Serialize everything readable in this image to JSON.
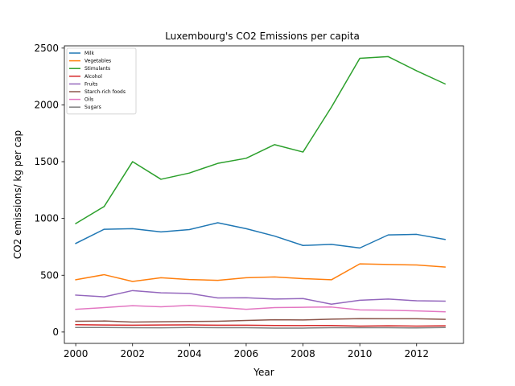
{
  "chart_data": {
    "type": "line",
    "title": "Luxembourg's CO2 Emissions per capita",
    "xlabel": "Year",
    "ylabel": "CO2 emissions/ kg per cap",
    "xlim": [
      1999.6,
      2013.65
    ],
    "ylim": [
      -100,
      2520
    ],
    "x_ticks": [
      2000,
      2002,
      2004,
      2006,
      2008,
      2010,
      2012
    ],
    "y_ticks": [
      0,
      500,
      1000,
      1500,
      2000,
      2500
    ],
    "grid": false,
    "legend_position": "top-left",
    "x": [
      2000,
      2001,
      2002,
      2003,
      2004,
      2005,
      2006,
      2007,
      2008,
      2009,
      2010,
      2011,
      2012,
      2013
    ],
    "series": [
      {
        "name": "Milk",
        "color": "#1f77b4",
        "values": [
          780,
          905,
          910,
          882,
          902,
          962,
          910,
          845,
          762,
          772,
          740,
          855,
          860,
          815
        ]
      },
      {
        "name": "Vegetables",
        "color": "#ff7f0e",
        "values": [
          460,
          505,
          445,
          478,
          462,
          455,
          478,
          485,
          470,
          460,
          600,
          595,
          590,
          572
        ]
      },
      {
        "name": "Stimulants",
        "color": "#2ca02c",
        "values": [
          955,
          1105,
          1500,
          1345,
          1400,
          1485,
          1530,
          1650,
          1585,
          1980,
          2410,
          2425,
          2300,
          2185
        ]
      },
      {
        "name": "Alcohol",
        "color": "#d62728",
        "values": [
          65,
          62,
          60,
          62,
          63,
          60,
          60,
          58,
          57,
          58,
          52,
          55,
          52,
          55
        ]
      },
      {
        "name": "Fruits",
        "color": "#9467bd",
        "values": [
          325,
          310,
          365,
          345,
          340,
          300,
          302,
          290,
          295,
          245,
          280,
          290,
          275,
          272
        ]
      },
      {
        "name": "Starch-rich foods",
        "color": "#8c564b",
        "values": [
          95,
          97,
          88,
          90,
          93,
          95,
          102,
          108,
          106,
          113,
          118,
          117,
          117,
          112
        ]
      },
      {
        "name": "Oils",
        "color": "#e377c2",
        "values": [
          200,
          215,
          232,
          222,
          235,
          218,
          200,
          215,
          218,
          220,
          195,
          192,
          186,
          178
        ]
      },
      {
        "name": "Sugars",
        "color": "#7f7f7f",
        "values": [
          40,
          40,
          38,
          37,
          40,
          38,
          38,
          35,
          35,
          38,
          38,
          38,
          36,
          40
        ]
      }
    ]
  }
}
